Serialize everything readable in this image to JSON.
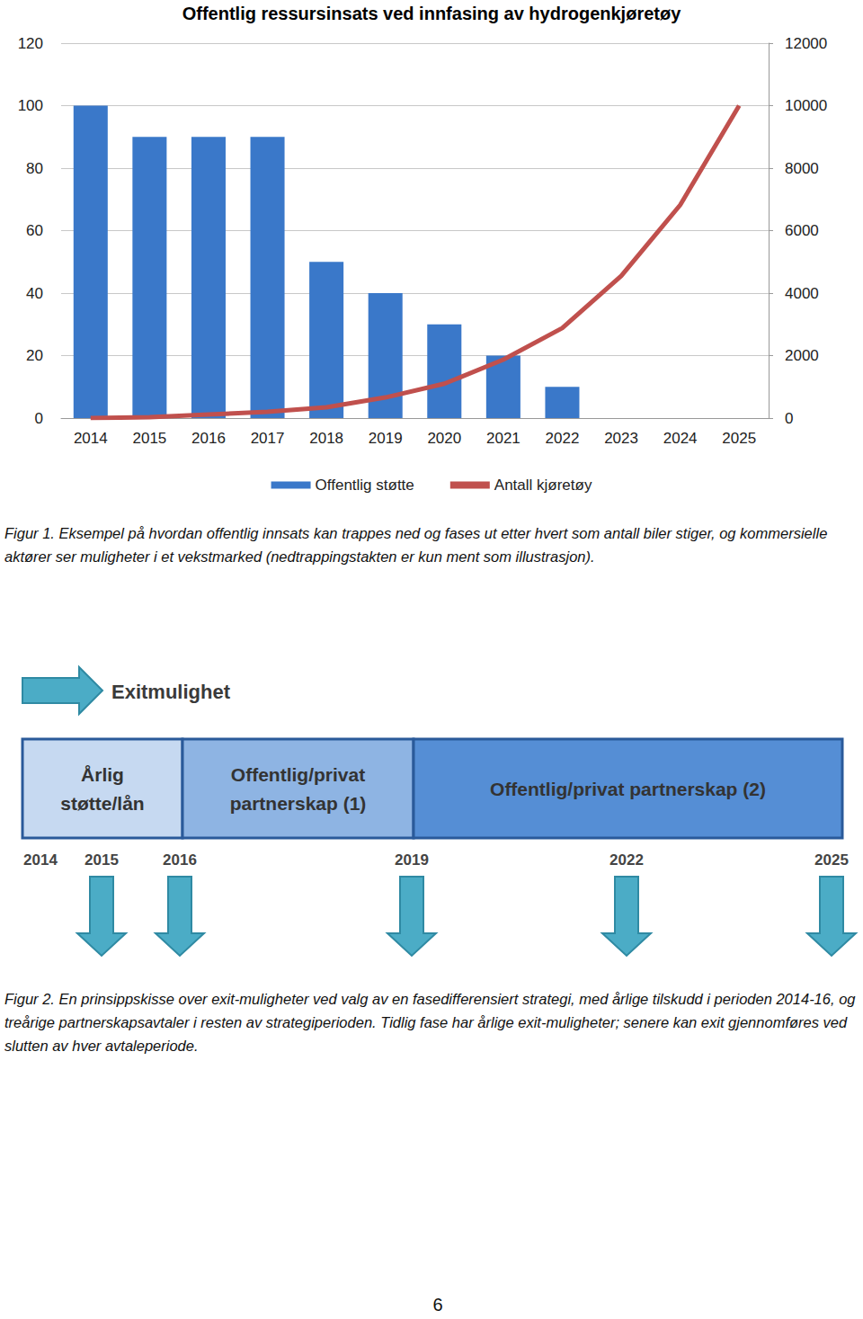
{
  "chart_data": {
    "type": "bar",
    "title": "Offentlig ressursinsats ved innfasing av hydrogenkjøretøy",
    "categories": [
      "2014",
      "2015",
      "2016",
      "2017",
      "2018",
      "2019",
      "2020",
      "2021",
      "2022",
      "2023",
      "2024",
      "2025"
    ],
    "series": [
      {
        "name": "Offentlig støtte",
        "type": "bar",
        "color": "#3a78c9",
        "values": [
          100,
          90,
          90,
          90,
          50,
          40,
          30,
          20,
          10,
          null,
          null,
          null
        ]
      },
      {
        "name": "Antall kjøretøy",
        "type": "line",
        "axis": "y2",
        "color": "#c0504d",
        "values": [
          0,
          30,
          115,
          200,
          345,
          660,
          1100,
          1870,
          2880,
          4550,
          6820,
          10000
        ]
      }
    ],
    "ylim": [
      0,
      120
    ],
    "yticks": [
      0,
      20,
      40,
      60,
      80,
      100,
      120
    ],
    "y2lim": [
      0,
      12000
    ],
    "y2ticks": [
      0,
      2000,
      4000,
      6000,
      8000,
      10000,
      12000
    ],
    "grid": true,
    "legend": "bottom"
  },
  "figure1_caption": "Figur 1. Eksempel på hvordan offentlig innsats kan trappes ned og fases ut etter hvert som antall biler stiger, og kommersielle aktører ser muligheter i et vekstmarked (nedtrappingstakten er kun ment som illustrasjon).",
  "diagram": {
    "legend_label": "Exitmulighet",
    "phases": [
      {
        "label": [
          "Årlig",
          "støtte/lån"
        ]
      },
      {
        "label": [
          "Offentlig/privat",
          "partnerskap (1)"
        ]
      },
      {
        "label": [
          "Offentlig/privat partnerskap (2)"
        ]
      }
    ],
    "years": [
      {
        "label": "2014",
        "exit": false
      },
      {
        "label": "2015",
        "exit": true
      },
      {
        "label": "2016",
        "exit": true
      },
      {
        "label": "2019",
        "exit": true
      },
      {
        "label": "2022",
        "exit": true
      },
      {
        "label": "2025",
        "exit": true
      }
    ]
  },
  "figure2_caption": "Figur 2. En prinsippskisse over exit-muligheter ved valg av en fasedifferensiert strategi, med årlige tilskudd i perioden 2014-16, og treårige partnerskapsavtaler i resten av strategiperioden. Tidlig fase har årlige exit-muligheter; senere kan exit gjennomføres ved slutten av hver avtaleperiode.",
  "page_number": "6"
}
